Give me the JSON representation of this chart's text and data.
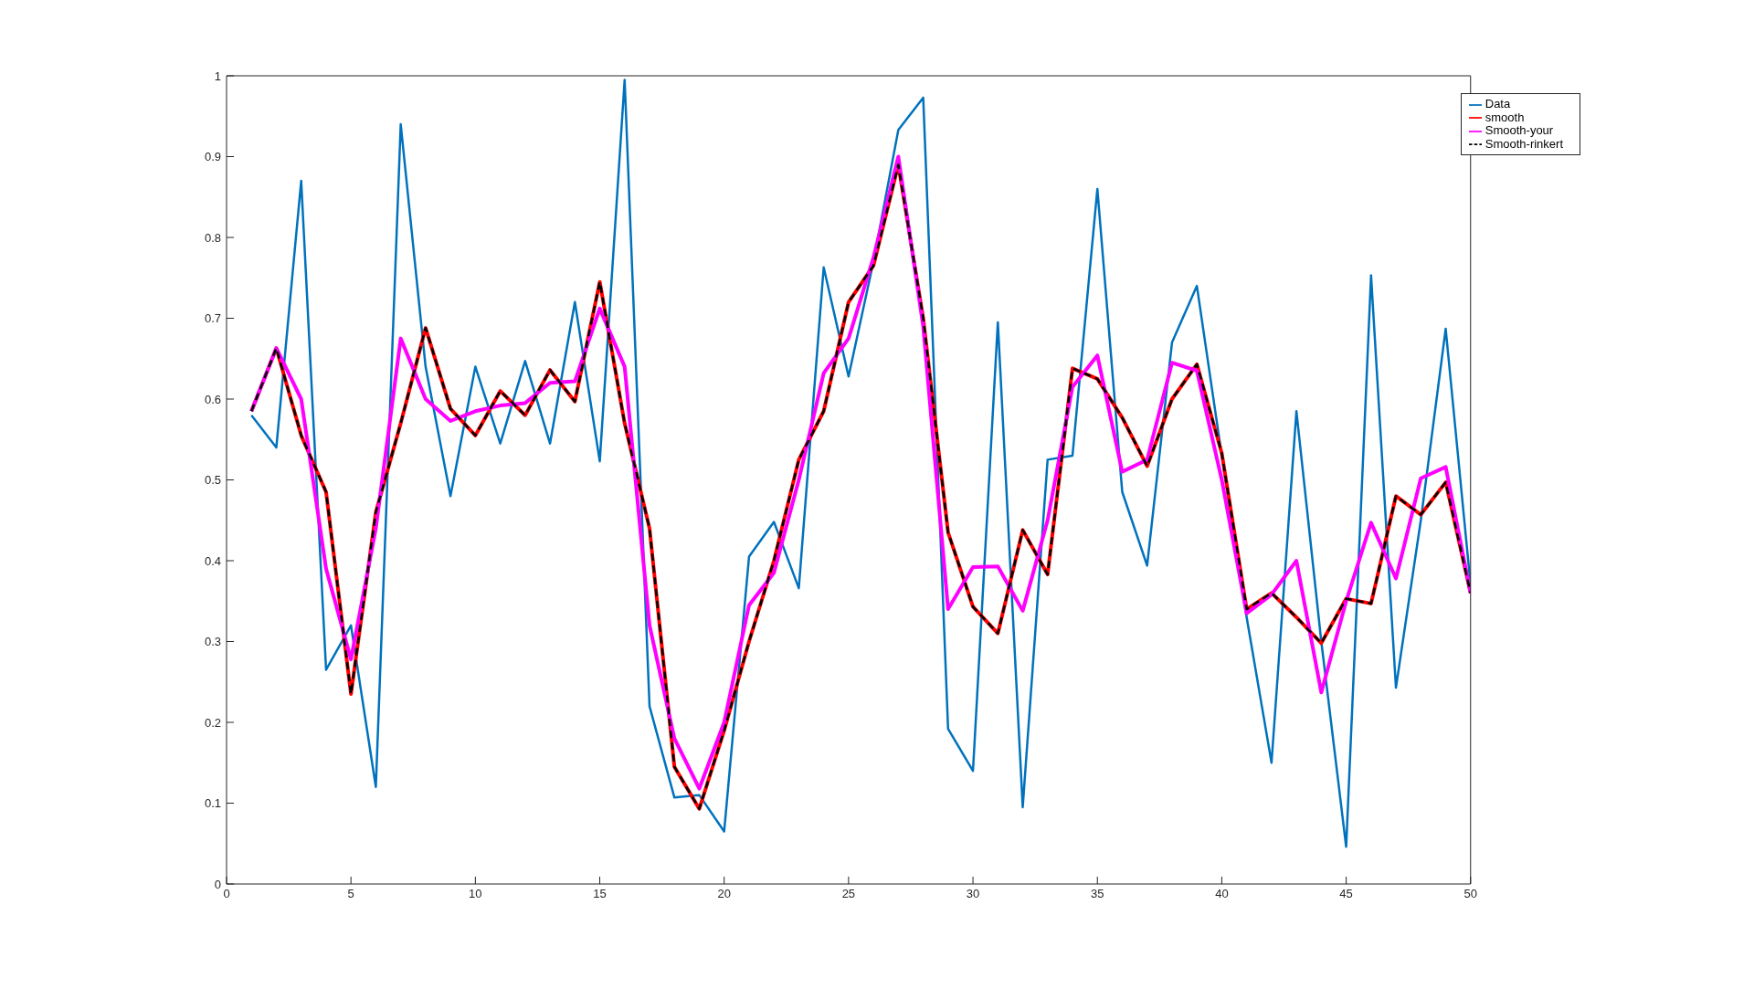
{
  "chart_data": {
    "type": "line",
    "x": [
      1,
      2,
      3,
      4,
      5,
      6,
      7,
      8,
      9,
      10,
      11,
      12,
      13,
      14,
      15,
      16,
      17,
      18,
      19,
      20,
      21,
      22,
      23,
      24,
      25,
      26,
      27,
      28,
      29,
      30,
      31,
      32,
      33,
      34,
      35,
      36,
      37,
      38,
      39,
      40,
      41,
      42,
      43,
      44,
      45,
      46,
      47,
      48,
      49,
      50
    ],
    "series": [
      {
        "name": "Data",
        "color": "#0072bd",
        "values": [
          0.58,
          0.54,
          0.87,
          0.265,
          0.32,
          0.12,
          0.94,
          0.64,
          0.48,
          0.64,
          0.545,
          0.647,
          0.545,
          0.72,
          0.523,
          0.995,
          0.22,
          0.107,
          0.11,
          0.065,
          0.405,
          0.448,
          0.366,
          0.763,
          0.628,
          0.77,
          0.933,
          0.973,
          0.192,
          0.14,
          0.695,
          0.095,
          0.525,
          0.53,
          0.86,
          0.485,
          0.394,
          0.67,
          0.74,
          0.53,
          0.33,
          0.15,
          0.585,
          0.3,
          0.046,
          0.753,
          0.243,
          0.45,
          0.687,
          0.37
        ]
      },
      {
        "name": "smooth",
        "color": "#ff0000",
        "line_style": "solid",
        "values": [
          0.585,
          0.663,
          0.555,
          0.485,
          0.235,
          0.46,
          0.57,
          0.688,
          0.588,
          0.555,
          0.61,
          0.58,
          0.636,
          0.597,
          0.745,
          0.57,
          0.44,
          0.145,
          0.093,
          0.19,
          0.3,
          0.4,
          0.525,
          0.585,
          0.72,
          0.765,
          0.89,
          0.7,
          0.435,
          0.343,
          0.31,
          0.438,
          0.383,
          0.638,
          0.625,
          0.577,
          0.517,
          0.6,
          0.643,
          0.533,
          0.34,
          0.36,
          0.33,
          0.298,
          0.353,
          0.347,
          0.48,
          0.457,
          0.497,
          0.36
        ]
      },
      {
        "name": "Smooth-your",
        "color": "#ff00ff",
        "line_style": "solid",
        "values": [
          0.585,
          0.663,
          0.6,
          0.39,
          0.278,
          0.44,
          0.675,
          0.6,
          0.573,
          0.585,
          0.592,
          0.595,
          0.62,
          0.622,
          0.712,
          0.64,
          0.32,
          0.18,
          0.118,
          0.2,
          0.345,
          0.385,
          0.5,
          0.632,
          0.675,
          0.775,
          0.9,
          0.69,
          0.34,
          0.392,
          0.393,
          0.338,
          0.45,
          0.615,
          0.654,
          0.51,
          0.525,
          0.645,
          0.635,
          0.5,
          0.335,
          0.358,
          0.4,
          0.237,
          0.35,
          0.447,
          0.378,
          0.502,
          0.516,
          0.36
        ]
      },
      {
        "name": "Smooth-rinkert",
        "color": "#000000",
        "line_style": "dashed",
        "values": [
          0.585,
          0.663,
          0.555,
          0.485,
          0.235,
          0.46,
          0.57,
          0.688,
          0.588,
          0.555,
          0.61,
          0.58,
          0.636,
          0.597,
          0.745,
          0.57,
          0.44,
          0.145,
          0.093,
          0.19,
          0.3,
          0.4,
          0.525,
          0.585,
          0.72,
          0.765,
          0.89,
          0.7,
          0.435,
          0.343,
          0.31,
          0.438,
          0.383,
          0.638,
          0.625,
          0.577,
          0.517,
          0.6,
          0.643,
          0.533,
          0.34,
          0.36,
          0.33,
          0.298,
          0.353,
          0.347,
          0.48,
          0.457,
          0.497,
          0.36
        ]
      }
    ],
    "xlim": [
      0,
      50
    ],
    "xticks": [
      0,
      5,
      10,
      15,
      20,
      25,
      30,
      35,
      40,
      45,
      50
    ],
    "ylim": [
      0,
      1
    ],
    "yticks": [
      0,
      0.1,
      0.2,
      0.3,
      0.4,
      0.5,
      0.6,
      0.7,
      0.8,
      0.9,
      1
    ],
    "grid": false,
    "legend": "top right",
    "marker": "none",
    "line_style": "solid"
  }
}
